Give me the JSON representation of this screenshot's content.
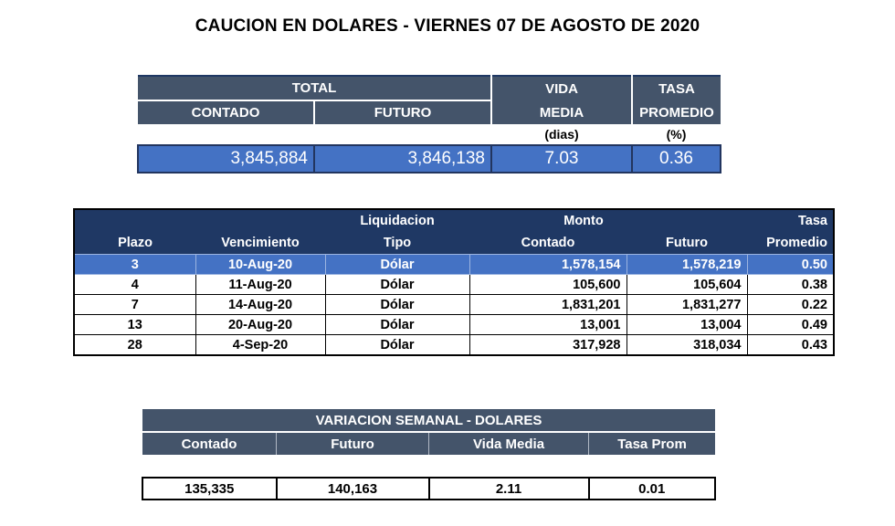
{
  "title": "CAUCION EN DOLARES - VIERNES 07 DE AGOSTO DE 2020",
  "summary": {
    "total_label": "TOTAL",
    "contado_label": "CONTADO",
    "futuro_label": "FUTURO",
    "vida_label_1": "VIDA",
    "vida_label_2": "MEDIA",
    "tasa_label_1": "TASA",
    "tasa_label_2": "PROMEDIO",
    "vida_unit": "(dias)",
    "tasa_unit": "(%)",
    "contado": "3,845,884",
    "futuro": "3,846,138",
    "vida_media": "7.03",
    "tasa_promedio": "0.36"
  },
  "detail": {
    "headers": {
      "liquidacion": "Liquidacion",
      "monto": "Monto",
      "tasa": "Tasa",
      "plazo": "Plazo",
      "vencimiento": "Vencimiento",
      "tipo": "Tipo",
      "contado": "Contado",
      "futuro": "Futuro",
      "promedio": "Promedio"
    },
    "rows": [
      {
        "plazo": "3",
        "vencimiento": "10-Aug-20",
        "tipo": "Dólar",
        "contado": "1,578,154",
        "futuro": "1,578,219",
        "tasa": "0.50"
      },
      {
        "plazo": "4",
        "vencimiento": "11-Aug-20",
        "tipo": "Dólar",
        "contado": "105,600",
        "futuro": "105,604",
        "tasa": "0.38"
      },
      {
        "plazo": "7",
        "vencimiento": "14-Aug-20",
        "tipo": "Dólar",
        "contado": "1,831,201",
        "futuro": "1,831,277",
        "tasa": "0.22"
      },
      {
        "plazo": "13",
        "vencimiento": "20-Aug-20",
        "tipo": "Dólar",
        "contado": "13,001",
        "futuro": "13,004",
        "tasa": "0.49"
      },
      {
        "plazo": "28",
        "vencimiento": "4-Sep-20",
        "tipo": "Dólar",
        "contado": "317,928",
        "futuro": "318,034",
        "tasa": "0.43"
      }
    ]
  },
  "weekly": {
    "title": "VARIACION SEMANAL - DOLARES",
    "contado_label": "Contado",
    "futuro_label": "Futuro",
    "vida_label": "Vida Media",
    "tasa_label": "Tasa Prom",
    "contado": "135,335",
    "futuro": "140,163",
    "vida_media": "2.11",
    "tasa": "0.01"
  }
}
